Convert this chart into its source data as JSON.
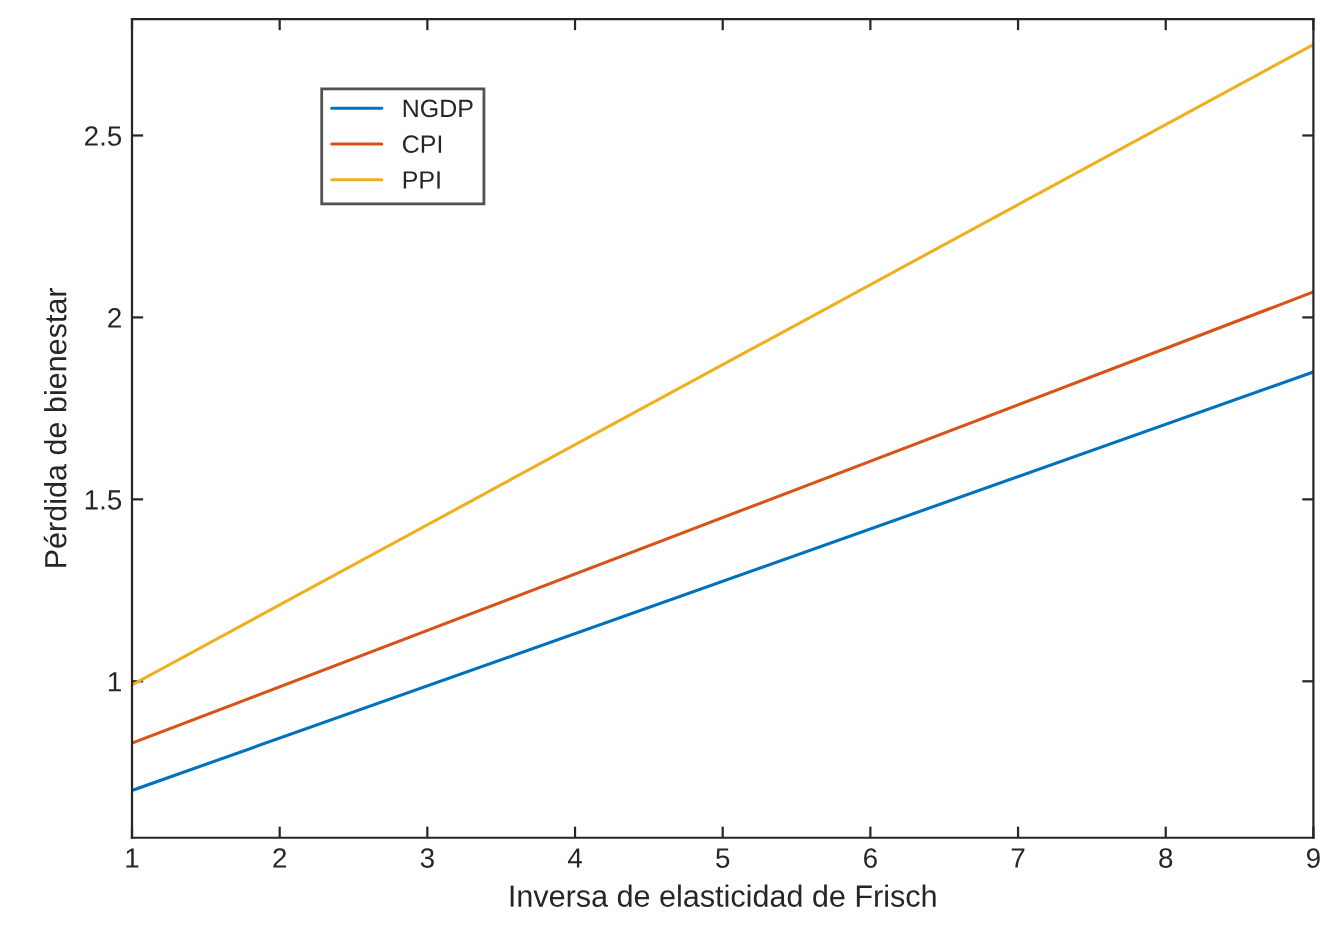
{
  "chart_data": {
    "type": "line",
    "xlabel": "Inversa de elasticidad de Frisch",
    "ylabel": "Pérdida de bienestar",
    "x": [
      1,
      9
    ],
    "series": [
      {
        "name": "NGDP",
        "color": "#0072bd",
        "values": [
          0.7,
          1.85
        ]
      },
      {
        "name": "CPI",
        "color": "#d95319",
        "values": [
          0.83,
          2.07
        ]
      },
      {
        "name": "PPI",
        "color": "#edb120",
        "values": [
          0.99,
          2.75
        ]
      }
    ],
    "xlim": [
      1,
      9
    ],
    "xticks": [
      1,
      2,
      3,
      4,
      5,
      6,
      7,
      8,
      9
    ],
    "ylim": [
      0.57,
      2.82
    ],
    "yticks": [
      1,
      1.5,
      2,
      2.5
    ],
    "grid": false,
    "legend": "top left",
    "line_style": "solid",
    "marker": "none"
  }
}
